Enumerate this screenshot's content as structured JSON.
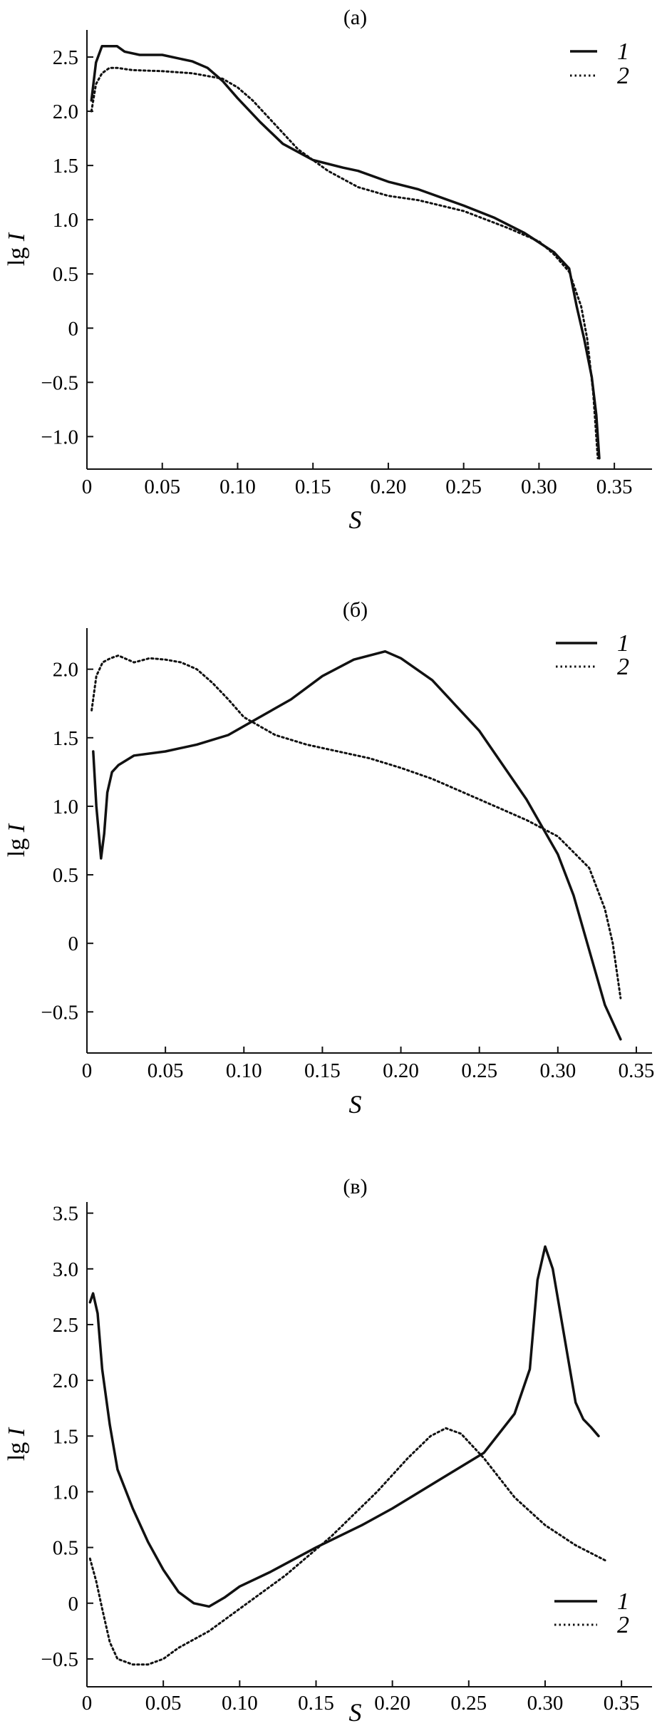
{
  "chart_data": [
    {
      "type": "line",
      "title": "(a)",
      "xlabel": "S",
      "ylabel_prefix": "lg",
      "ylabel_var": "I",
      "xlim": [
        0,
        0.375
      ],
      "ylim": [
        -1.3,
        2.75
      ],
      "xticks": [
        0,
        0.05,
        0.1,
        0.15,
        0.2,
        0.25,
        0.3,
        0.35
      ],
      "xtick_labels": [
        "0",
        "0.05",
        "0.10",
        "0.15",
        "0.20",
        "0.25",
        "0.30",
        "0.35"
      ],
      "yticks": [
        -1.0,
        -0.5,
        0,
        0.5,
        1.0,
        1.5,
        2.0,
        2.5
      ],
      "ytick_labels": [
        "−1.0",
        "−0.5",
        "0",
        "0.5",
        "1.0",
        "1.5",
        "2.0",
        "2.5"
      ],
      "legend_position": "top-right",
      "series": [
        {
          "name": "1",
          "style": "solid",
          "x": [
            0.003,
            0.006,
            0.01,
            0.015,
            0.02,
            0.025,
            0.035,
            0.05,
            0.07,
            0.08,
            0.09,
            0.1,
            0.115,
            0.13,
            0.15,
            0.17,
            0.18,
            0.2,
            0.22,
            0.25,
            0.27,
            0.29,
            0.31,
            0.32,
            0.325,
            0.33,
            0.335,
            0.338,
            0.34
          ],
          "y": [
            2.1,
            2.45,
            2.6,
            2.6,
            2.6,
            2.55,
            2.52,
            2.52,
            2.46,
            2.4,
            2.28,
            2.12,
            1.9,
            1.7,
            1.55,
            1.48,
            1.45,
            1.35,
            1.28,
            1.13,
            1.02,
            0.88,
            0.7,
            0.55,
            0.2,
            -0.1,
            -0.45,
            -0.8,
            -1.2
          ]
        },
        {
          "name": "2",
          "style": "dotted",
          "x": [
            0.003,
            0.006,
            0.01,
            0.015,
            0.02,
            0.03,
            0.05,
            0.07,
            0.09,
            0.1,
            0.11,
            0.12,
            0.14,
            0.16,
            0.18,
            0.2,
            0.22,
            0.25,
            0.28,
            0.3,
            0.31,
            0.32,
            0.328,
            0.332,
            0.336,
            0.339
          ],
          "y": [
            2.0,
            2.25,
            2.35,
            2.4,
            2.4,
            2.38,
            2.37,
            2.35,
            2.3,
            2.22,
            2.1,
            1.95,
            1.65,
            1.45,
            1.3,
            1.22,
            1.18,
            1.08,
            0.92,
            0.8,
            0.68,
            0.52,
            0.2,
            -0.1,
            -0.6,
            -1.2
          ]
        }
      ]
    },
    {
      "type": "line",
      "title": "(б)",
      "xlabel": "S",
      "ylabel_prefix": "lg",
      "ylabel_var": "I",
      "xlim": [
        0,
        0.36
      ],
      "ylim": [
        -0.8,
        2.3
      ],
      "xticks": [
        0,
        0.05,
        0.1,
        0.15,
        0.2,
        0.25,
        0.3,
        0.35
      ],
      "xtick_labels": [
        "0",
        "0.05",
        "0.10",
        "0.15",
        "0.20",
        "0.25",
        "0.30",
        "0.35"
      ],
      "yticks": [
        -0.5,
        0,
        0.5,
        1.0,
        1.5,
        2.0
      ],
      "ytick_labels": [
        "−0.5",
        "0",
        "0.5",
        "1.0",
        "1.5",
        "2.0"
      ],
      "legend_position": "top-right",
      "series": [
        {
          "name": "1",
          "style": "solid",
          "x": [
            0.004,
            0.006,
            0.009,
            0.011,
            0.013,
            0.016,
            0.02,
            0.03,
            0.05,
            0.07,
            0.09,
            0.11,
            0.13,
            0.15,
            0.17,
            0.19,
            0.2,
            0.22,
            0.25,
            0.28,
            0.3,
            0.31,
            0.32,
            0.33,
            0.34
          ],
          "y": [
            1.4,
            1.0,
            0.62,
            0.8,
            1.1,
            1.25,
            1.3,
            1.37,
            1.4,
            1.45,
            1.52,
            1.65,
            1.78,
            1.95,
            2.07,
            2.13,
            2.08,
            1.92,
            1.55,
            1.05,
            0.65,
            0.35,
            -0.05,
            -0.45,
            -0.7
          ]
        },
        {
          "name": "2",
          "style": "dotted",
          "x": [
            0.003,
            0.006,
            0.01,
            0.015,
            0.02,
            0.03,
            0.04,
            0.05,
            0.06,
            0.07,
            0.08,
            0.09,
            0.1,
            0.12,
            0.14,
            0.16,
            0.18,
            0.2,
            0.22,
            0.24,
            0.26,
            0.28,
            0.3,
            0.32,
            0.33,
            0.335,
            0.34
          ],
          "y": [
            1.7,
            1.95,
            2.05,
            2.08,
            2.1,
            2.05,
            2.08,
            2.07,
            2.05,
            2.0,
            1.9,
            1.78,
            1.65,
            1.52,
            1.45,
            1.4,
            1.35,
            1.28,
            1.2,
            1.1,
            1.0,
            0.9,
            0.78,
            0.55,
            0.25,
            0.0,
            -0.4
          ]
        }
      ]
    },
    {
      "type": "line",
      "title": "(в)",
      "xlabel": "S",
      "ylabel_prefix": "lg",
      "ylabel_var": "I",
      "xlim": [
        0,
        0.37
      ],
      "ylim": [
        -0.75,
        3.6
      ],
      "xticks": [
        0,
        0.05,
        0.1,
        0.15,
        0.2,
        0.25,
        0.3,
        0.35
      ],
      "xtick_labels": [
        "0",
        "0.05",
        "0.10",
        "0.15",
        "0.20",
        "0.25",
        "0.30",
        "0.35"
      ],
      "yticks": [
        -0.5,
        0,
        0.5,
        1.0,
        1.5,
        2.0,
        2.5,
        3.0,
        3.5
      ],
      "ytick_labels": [
        "−0.5",
        "0",
        "0.5",
        "1.0",
        "1.5",
        "2.0",
        "2.5",
        "3.0",
        "3.5"
      ],
      "legend_position": "bottom-right",
      "series": [
        {
          "name": "1",
          "style": "solid",
          "x": [
            0.002,
            0.004,
            0.007,
            0.01,
            0.015,
            0.02,
            0.03,
            0.04,
            0.05,
            0.06,
            0.07,
            0.08,
            0.09,
            0.1,
            0.12,
            0.15,
            0.18,
            0.2,
            0.23,
            0.26,
            0.28,
            0.29,
            0.295,
            0.3,
            0.305,
            0.31,
            0.315,
            0.32,
            0.325,
            0.33,
            0.335
          ],
          "y": [
            2.7,
            2.78,
            2.6,
            2.1,
            1.6,
            1.2,
            0.85,
            0.55,
            0.3,
            0.1,
            0.0,
            -0.03,
            0.05,
            0.15,
            0.28,
            0.5,
            0.7,
            0.85,
            1.1,
            1.35,
            1.7,
            2.1,
            2.9,
            3.2,
            3.0,
            2.6,
            2.2,
            1.8,
            1.65,
            1.58,
            1.5
          ]
        },
        {
          "name": "2",
          "style": "dotted",
          "x": [
            0.002,
            0.006,
            0.01,
            0.015,
            0.02,
            0.03,
            0.04,
            0.05,
            0.06,
            0.08,
            0.1,
            0.13,
            0.16,
            0.19,
            0.21,
            0.225,
            0.235,
            0.245,
            0.26,
            0.28,
            0.3,
            0.32,
            0.34
          ],
          "y": [
            0.4,
            0.2,
            -0.05,
            -0.35,
            -0.5,
            -0.55,
            -0.55,
            -0.5,
            -0.4,
            -0.25,
            -0.05,
            0.25,
            0.6,
            1.0,
            1.3,
            1.5,
            1.57,
            1.52,
            1.3,
            0.95,
            0.7,
            0.52,
            0.38
          ]
        }
      ]
    }
  ]
}
